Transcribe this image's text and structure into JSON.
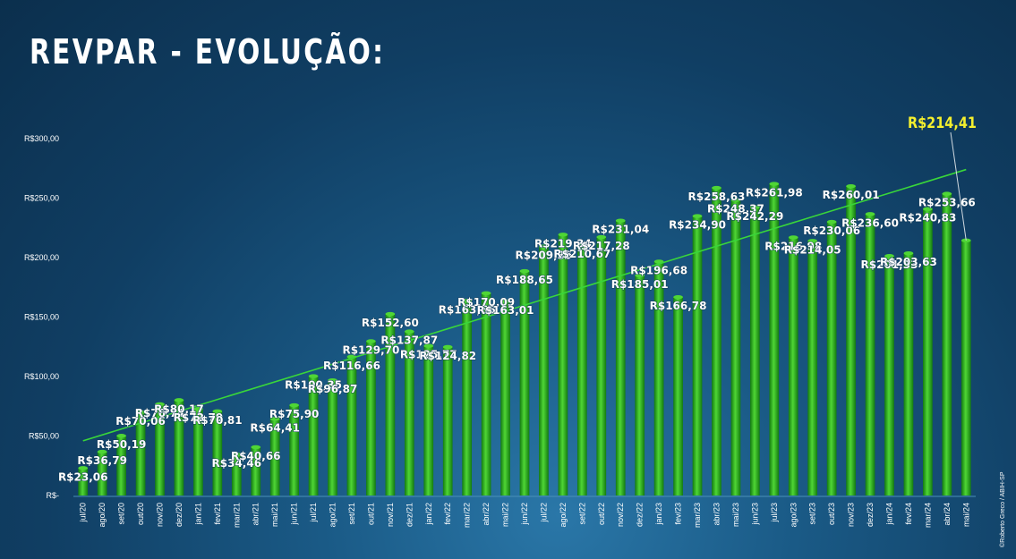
{
  "title": "REVPAR - EVOLUÇÃO:",
  "highlight_label": "R$214,41",
  "credit": "©Roberto Greco / ABIH-SP",
  "colors": {
    "bar_light": "#4fd635",
    "bar_dark": "#137a10",
    "trendline": "#39d63a",
    "highlight": "#f4ef2e"
  },
  "chart_data": {
    "type": "bar",
    "title": "REVPAR - EVOLUÇÃO:",
    "xlabel": "",
    "ylabel": "",
    "ylim": [
      0,
      300
    ],
    "yticks": [
      0,
      50,
      100,
      150,
      200,
      250,
      300
    ],
    "ytick_labels": [
      "R$-",
      "R$50,00",
      "R$100,00",
      "R$150,00",
      "R$200,00",
      "R$250,00",
      "R$300,00"
    ],
    "grid": false,
    "trendline": true,
    "categories": [
      "jul/20",
      "ago/20",
      "set/20",
      "out/20",
      "nov/20",
      "dez/20",
      "jan/21",
      "fev/21",
      "mar/21",
      "abr/21",
      "mai/21",
      "jun/21",
      "jul/21",
      "ago/21",
      "set/21",
      "out/21",
      "nov/21",
      "dez/21",
      "jan/22",
      "fev/22",
      "mar/22",
      "abr/22",
      "mai/22",
      "jun/22",
      "jul/22",
      "ago/22",
      "set/22",
      "out/22",
      "nov/22",
      "dez/22",
      "jan/23",
      "fev/23",
      "mar/23",
      "abr/23",
      "mai/23",
      "jun/23",
      "jul/23",
      "ago/23",
      "set/23",
      "out/23",
      "nov/23",
      "dez/23",
      "jan/24",
      "fev/24",
      "mar/24",
      "abr/24",
      "mai/24"
    ],
    "values": [
      23.06,
      36.79,
      50.19,
      70.06,
      76.74,
      80.17,
      72.79,
      70.81,
      34.46,
      40.66,
      64.41,
      75.9,
      100.35,
      96.87,
      116.66,
      129.7,
      152.6,
      137.87,
      125.77,
      124.82,
      163.66,
      170.09,
      163.01,
      188.65,
      209.35,
      219.34,
      210.67,
      217.28,
      231.04,
      185.01,
      196.68,
      166.78,
      234.9,
      258.63,
      248.37,
      242.29,
      261.98,
      216.98,
      214.05,
      230.06,
      260.01,
      236.6,
      201.33,
      203.63,
      240.83,
      253.66,
      214.41
    ],
    "labels": [
      "R$23,06",
      "R$36,79",
      "R$50,19",
      "R$70,06",
      "R$76,74",
      "R$80,17",
      "R$72,79",
      "R$70,81",
      "R$34,46",
      "R$40,66",
      "R$64,41",
      "R$75,90",
      "R$100,35",
      "R$96,87",
      "R$116,66",
      "R$129,70",
      "R$152,60",
      "R$137,87",
      "R$125,77",
      "R$124,82",
      "R$163,66",
      "R$170,09",
      "R$163,01",
      "R$188,65",
      "R$209,35",
      "R$219,34",
      "R$210,67",
      "R$217,28",
      "R$231,04",
      "R$185,01",
      "R$196,68",
      "R$166,78",
      "R$234,90",
      "R$258,63",
      "R$248,37",
      "R$242,29",
      "R$261,98",
      "R$216,98",
      "R$214,05",
      "R$230,06",
      "R$260,01",
      "R$236,60",
      "R$201,33",
      "R$203,63",
      "R$240,83",
      "R$253,66",
      ""
    ]
  }
}
